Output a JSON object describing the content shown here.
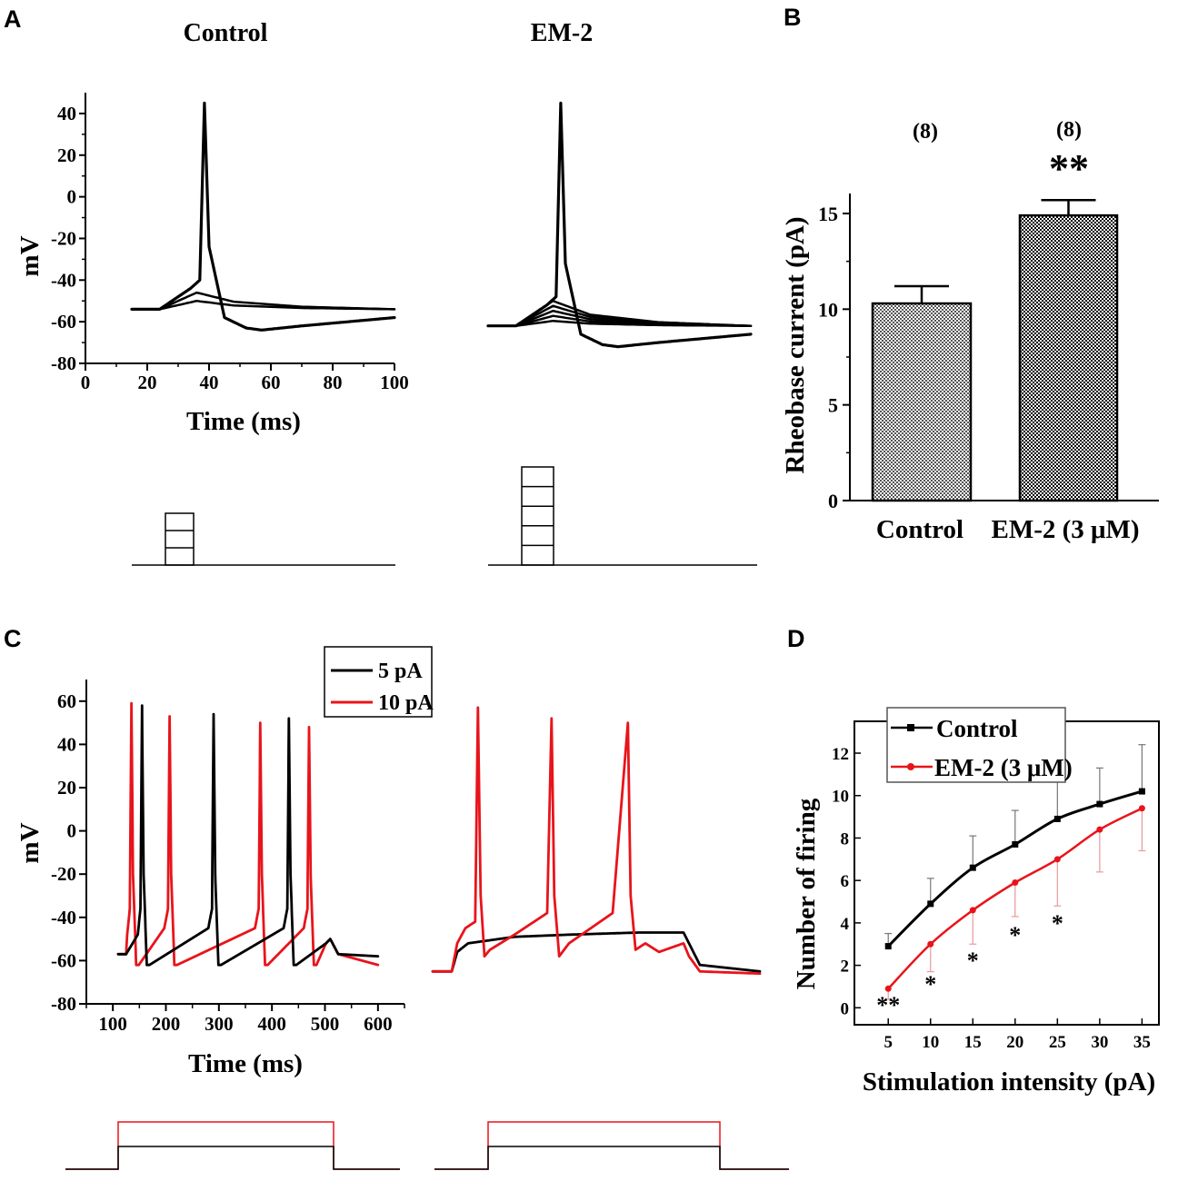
{
  "panels": {
    "A": "A",
    "B": "B",
    "C": "C",
    "D": "D"
  },
  "colors": {
    "control": "#000000",
    "em2": "#e8141b",
    "axis": "#000000"
  },
  "chart_data": [
    {
      "id": "A",
      "type": "line",
      "titles": [
        "Control",
        "EM-2"
      ],
      "xlabel": "Time (ms)",
      "ylabel": "mV",
      "xlim": [
        0,
        100
      ],
      "ylim": [
        -80,
        50
      ],
      "xticks": [
        "0",
        "20",
        "40",
        "60",
        "80",
        "100"
      ],
      "yticks": [
        "40",
        "20",
        "0",
        "-20",
        "-40",
        "-60",
        "-80"
      ],
      "control_steps": 3,
      "em2_steps": 6,
      "rest_potential_control": -54,
      "rest_potential_em2": -62,
      "spike_peak": 45
    },
    {
      "id": "B",
      "type": "bar",
      "categories": [
        "Control",
        "EM-2 (3 μM)"
      ],
      "values": [
        10.3,
        14.9
      ],
      "errors": [
        0.9,
        0.8
      ],
      "n_labels": [
        "(8)",
        "(8)"
      ],
      "significance": [
        "",
        "**"
      ],
      "ylabel": "Rheobase current (pA)",
      "ylim": [
        0,
        16
      ],
      "yticks": [
        "0",
        "5",
        "10",
        "15"
      ]
    },
    {
      "id": "C",
      "type": "line",
      "xlabel": "Time (ms)",
      "ylabel": "mV",
      "xlim": [
        50,
        650
      ],
      "ylim": [
        -80,
        70
      ],
      "xticks": [
        "100",
        "200",
        "300",
        "400",
        "500",
        "600"
      ],
      "yticks": [
        "60",
        "40",
        "20",
        "0",
        "-20",
        "-40",
        "-60",
        "-80"
      ],
      "legend": [
        "5 pA",
        "10 pA"
      ],
      "spikes_control_5pA": [
        155,
        290,
        432
      ],
      "spikes_control_10pA": [
        135,
        207,
        378,
        470
      ],
      "spikes_em2_10pA": [
        162,
        302,
        447
      ],
      "spike_peaks_control_5pA": [
        58,
        54,
        52
      ],
      "spike_peaks_control_10pA": [
        59,
        53,
        50,
        48
      ]
    },
    {
      "id": "D",
      "type": "line",
      "xlabel": "Stimulation intensity (pA)",
      "ylabel": "Number of firing",
      "x": [
        5,
        10,
        15,
        20,
        25,
        30,
        35
      ],
      "xticks": [
        "5",
        "10",
        "15",
        "20",
        "25",
        "30",
        "35"
      ],
      "yticks": [
        "0",
        "2",
        "4",
        "6",
        "8",
        "10",
        "12"
      ],
      "xlim": [
        1,
        37
      ],
      "ylim": [
        -0.8,
        13.5
      ],
      "series": [
        {
          "name": "Control",
          "values": [
            2.9,
            4.9,
            6.6,
            7.7,
            8.9,
            9.6,
            10.2
          ],
          "errors": [
            0.6,
            1.2,
            1.5,
            1.6,
            2.0,
            1.7,
            2.2
          ]
        },
        {
          "name": "EM-2 (3 μM)",
          "values": [
            0.9,
            3.0,
            4.6,
            5.9,
            7.0,
            8.4,
            9.4
          ],
          "errors": [
            0.5,
            1.3,
            1.6,
            1.6,
            2.2,
            2.0,
            2.0
          ]
        }
      ],
      "significance": [
        "**",
        "*",
        "*",
        "*",
        "*",
        "",
        ""
      ]
    }
  ]
}
